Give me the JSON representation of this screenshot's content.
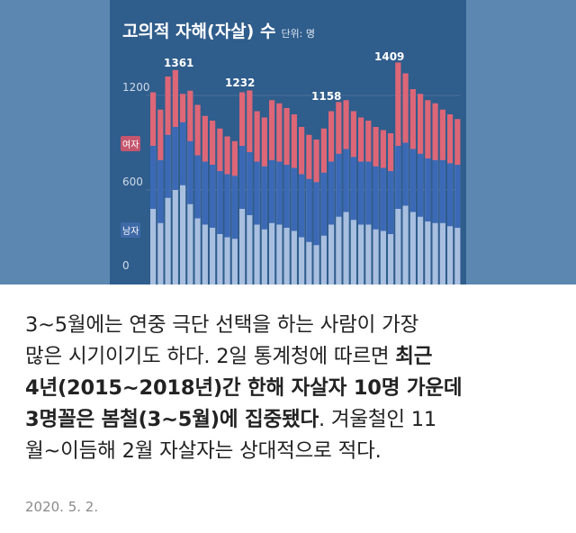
{
  "chart_data": {
    "type": "bar",
    "title": "고의적 자해(자살) 수",
    "unit": "단위: 명",
    "y_ticks": [
      "1200",
      "600",
      "0"
    ],
    "ylim": [
      0,
      1500
    ],
    "legend": {
      "female": "여자",
      "male": "남자"
    },
    "colors": {
      "female": "#dd6677",
      "male": "#3c69b5",
      "male_light": "#a9bfe0"
    },
    "series": [
      {
        "name": "남자",
        "values": [
          880,
          790,
          950,
          1000,
          1030,
          910,
          820,
          780,
          760,
          720,
          700,
          690,
          880,
          840,
          780,
          750,
          790,
          780,
          760,
          740,
          700,
          670,
          650,
          710,
          780,
          830,
          860,
          810,
          780,
          780,
          750,
          740,
          720,
          880,
          900,
          860,
          830,
          800,
          790,
          790,
          770,
          760
        ]
      },
      {
        "name": "여자",
        "values": [
          340,
          320,
          370,
          361,
          180,
          320,
          320,
          290,
          280,
          270,
          240,
          220,
          340,
          392,
          320,
          310,
          380,
          370,
          360,
          340,
          300,
          280,
          270,
          280,
          320,
          328,
          310,
          290,
          280,
          260,
          250,
          240,
          240,
          529,
          440,
          380,
          380,
          370,
          360,
          320,
          310,
          290
        ]
      }
    ],
    "annotations": [
      {
        "label": "1361",
        "index": 3,
        "value": 1361
      },
      {
        "label": "1232",
        "index": 13,
        "value": 1232
      },
      {
        "label": "1158",
        "index": 25,
        "value": 1158
      },
      {
        "label": "1409",
        "index": 33,
        "value": 1409
      }
    ]
  },
  "article": {
    "line1": "3~5월에는 연중 극단 선택을 하는 사람이 가장",
    "line2_regular": "많은 시기이기도 하다. 2일 통계청에 따르면 ",
    "line2_bold": "최근",
    "line3_bold": "4년(2015~2018년)간 한해 자살자 10명 가운데",
    "line4_bold": "3명꼴은 봄철(3~5월)에 집중됐다",
    "line4_regular": ". 겨울철인 11",
    "line5": "월~이듬해 2월 자살자는 상대적으로 적다.",
    "date": "2020. 5. 2."
  }
}
